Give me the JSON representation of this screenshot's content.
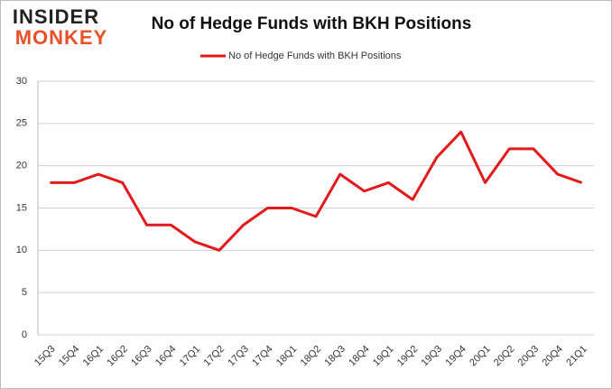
{
  "logo": {
    "line1": "INSIDER",
    "line2": "MONKEY"
  },
  "chart_data": {
    "type": "line",
    "title": "No of Hedge Funds with BKH Positions",
    "categories": [
      "15Q3",
      "15Q4",
      "16Q1",
      "16Q2",
      "16Q3",
      "16Q4",
      "17Q1",
      "17Q2",
      "17Q3",
      "17Q4",
      "18Q1",
      "18Q2",
      "18Q3",
      "18Q4",
      "19Q1",
      "19Q2",
      "19Q3",
      "19Q4",
      "20Q1",
      "20Q2",
      "20Q3",
      "20Q4",
      "21Q1"
    ],
    "series": [
      {
        "name": "No of Hedge Funds with BKH Positions",
        "color": "#e31a1c",
        "values": [
          18,
          18,
          19,
          18,
          13,
          13,
          11,
          10,
          13,
          15,
          15,
          14,
          19,
          17,
          18,
          16,
          21,
          24,
          18,
          22,
          22,
          19,
          18
        ]
      }
    ],
    "ylim": [
      0,
      30
    ],
    "yticks": [
      0,
      5,
      10,
      15,
      20,
      25,
      30
    ],
    "grid": true,
    "legend": "top"
  }
}
